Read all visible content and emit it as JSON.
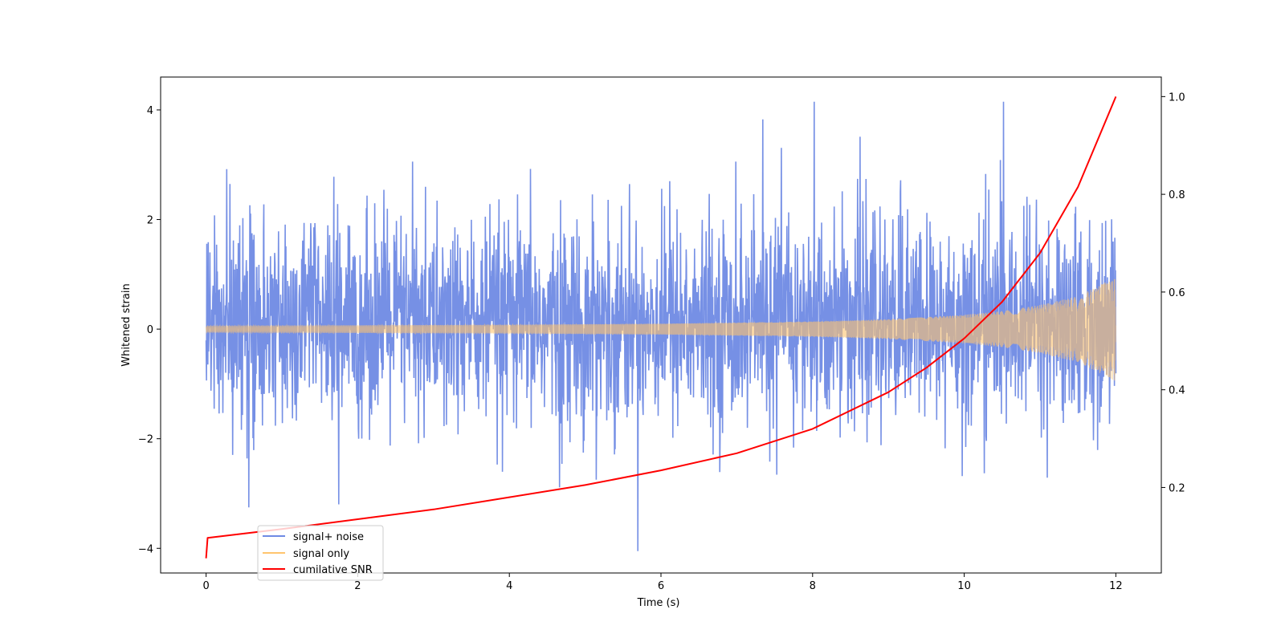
{
  "chart_data": {
    "type": "line",
    "title": "",
    "xlabel": "Time (s)",
    "ylabel": "Whitened strain",
    "y2label": "",
    "xlim": [
      -0.6,
      12.6
    ],
    "ylim": [
      -4.45,
      4.6
    ],
    "y2lim": [
      0.025,
      1.04
    ],
    "x_ticks": [
      0,
      2,
      4,
      6,
      8,
      10,
      12
    ],
    "x_tick_labels": [
      "0",
      "2",
      "4",
      "6",
      "8",
      "10",
      "12"
    ],
    "y_ticks": [
      -4,
      -2,
      0,
      2,
      4
    ],
    "y_tick_labels": [
      "−4",
      "−2",
      "0",
      "2",
      "4"
    ],
    "y2_ticks": [
      0.2,
      0.4,
      0.6,
      0.8,
      1.0
    ],
    "y2_tick_labels": [
      "0.2",
      "0.4",
      "0.6",
      "0.8",
      "1.0"
    ],
    "grid": false,
    "legend_position": "bottom-left",
    "series": [
      {
        "name": "signal+ noise",
        "color": "#6f8ae4",
        "axis": "left",
        "description_stats": {
          "x_range": [
            0,
            12
          ],
          "typical_band": [
            -1.5,
            1.8
          ],
          "max_peak": 4.15,
          "min_peak": -4.05
        }
      },
      {
        "name": "signal only",
        "color": "#ffc56e",
        "axis": "left",
        "envelope_x": [
          0,
          2,
          4,
          6,
          8,
          9,
          10,
          10.5,
          11,
          11.5,
          12
        ],
        "envelope_amp": [
          0.06,
          0.07,
          0.08,
          0.1,
          0.14,
          0.18,
          0.26,
          0.33,
          0.44,
          0.6,
          0.95
        ]
      },
      {
        "name": "cumilative SNR",
        "color": "#ff0000",
        "axis": "right",
        "x": [
          0,
          0.02,
          1,
          2,
          3,
          4,
          5,
          6,
          7,
          8,
          9,
          9.5,
          10,
          10.5,
          11,
          11.5,
          12
        ],
        "y": [
          0.055,
          0.097,
          0.115,
          0.135,
          0.155,
          0.18,
          0.205,
          0.235,
          0.27,
          0.32,
          0.395,
          0.445,
          0.505,
          0.58,
          0.68,
          0.815,
          1.0
        ]
      }
    ]
  }
}
